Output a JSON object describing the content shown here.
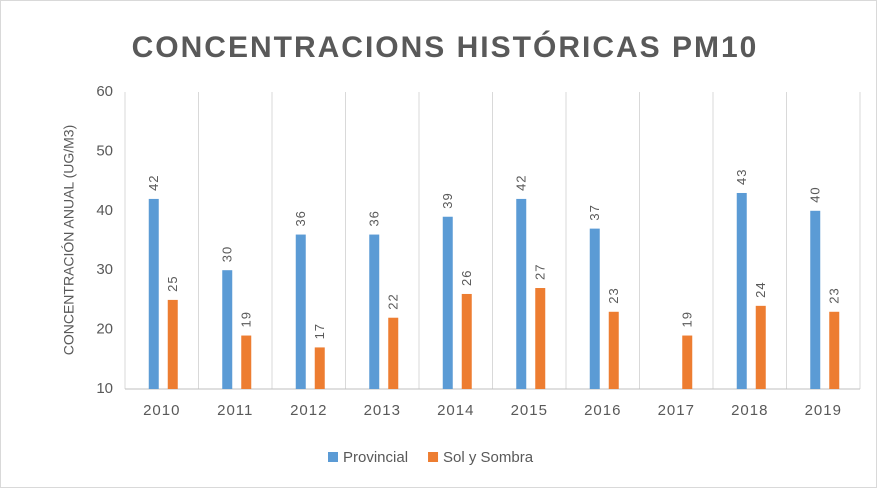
{
  "chart_data": {
    "type": "bar",
    "title": "CONCENTRACIONS HISTÓRICAS PM10",
    "y_label": "CONCENTRACIÓN ANUAL (UG/M3)",
    "categories": [
      "2010",
      "2011",
      "2012",
      "2013",
      "2014",
      "2015",
      "2016",
      "2017",
      "2018",
      "2019"
    ],
    "series": [
      {
        "name": "Provincial",
        "color": "#5b9bd5",
        "values": [
          42,
          30,
          36,
          36,
          39,
          42,
          37,
          null,
          43,
          40
        ]
      },
      {
        "name": "Sol y Sombra",
        "color": "#ed7d31",
        "values": [
          25,
          19,
          17,
          22,
          26,
          27,
          23,
          19,
          24,
          23
        ]
      }
    ],
    "ylim": [
      10,
      60
    ],
    "yticks": [
      10,
      20,
      30,
      40,
      50,
      60
    ],
    "grid": false,
    "legend": "bottom"
  }
}
